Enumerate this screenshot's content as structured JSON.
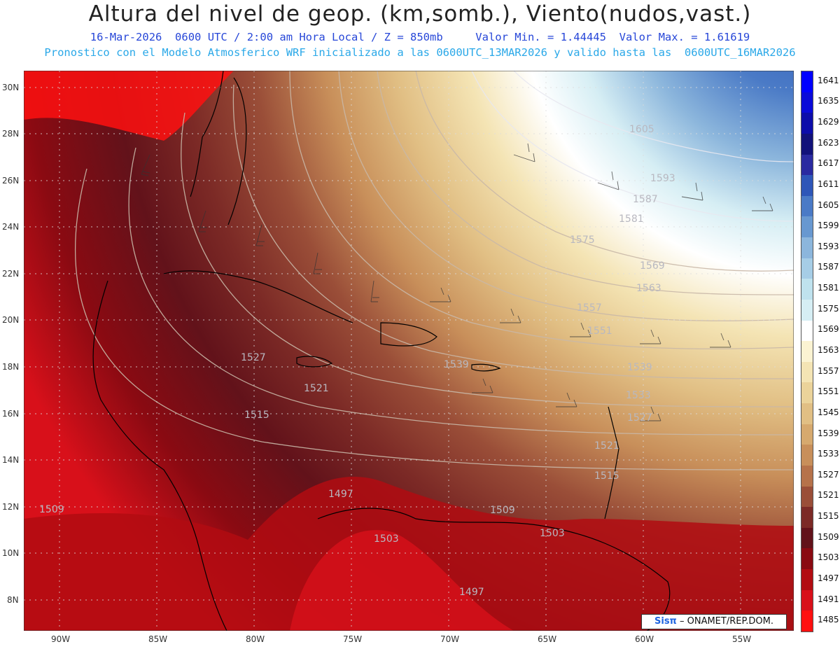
{
  "header": {
    "title": "Altura del nivel de geop. (km,somb.), Viento(nudos,vast.)",
    "subtitle1": "16-Mar-2026  0600 UTC / 2:00 am Hora Local / Z = 850mb     Valor Min. = 1.44445  Valor Max. = 1.61619",
    "subtitle2": "Pronostico con el Modelo Atmosferico WRF inicializado a las 0600UTC_13MAR2026 y valido hasta las  0600UTC_16MAR2026"
  },
  "map": {
    "lon_ticks": [
      "90W",
      "85W",
      "80W",
      "75W",
      "70W",
      "65W",
      "60W",
      "55W"
    ],
    "lat_ticks": [
      "30N",
      "28N",
      "26N",
      "24N",
      "22N",
      "20N",
      "18N",
      "16N",
      "14N",
      "12N",
      "10N",
      "8N"
    ],
    "contour_labels": [
      "1605",
      "1593",
      "1587",
      "1581",
      "1575",
      "1569",
      "1563",
      "1557",
      "1551",
      "1539",
      "1527",
      "1521",
      "1515",
      "1509",
      "1497",
      "1503",
      "1497",
      "1509",
      "1503",
      "1521",
      "1515",
      "1533",
      "1527",
      "1539"
    ]
  },
  "colorbar": {
    "levels": [
      "1641",
      "1635",
      "1629",
      "1623",
      "1617",
      "1611",
      "1605",
      "1599",
      "1593",
      "1587",
      "1581",
      "1575",
      "1569",
      "1563",
      "1557",
      "1551",
      "1545",
      "1539",
      "1533",
      "1527",
      "1521",
      "1515",
      "1509",
      "1503",
      "1497",
      "1491",
      "1485"
    ],
    "colors": [
      "#0000ff",
      "#0a0ad8",
      "#0d0daa",
      "#12127a",
      "#2a2aa0",
      "#2e56b8",
      "#4a7ac6",
      "#6898d0",
      "#8cb6dc",
      "#a6cde6",
      "#bfe2ee",
      "#d6eef4",
      "#ffffff",
      "#fbf3d2",
      "#f4e4b4",
      "#ebd39a",
      "#e1bf84",
      "#d6a96e",
      "#c88f5a",
      "#b6724a",
      "#9a4e38",
      "#7c2a26",
      "#62121a",
      "#8a0a12",
      "#b20c12",
      "#d8101a",
      "#ff1010"
    ]
  },
  "credit": {
    "brand": "Sisπ",
    "text": " – ONAMET/REP.DOM."
  }
}
